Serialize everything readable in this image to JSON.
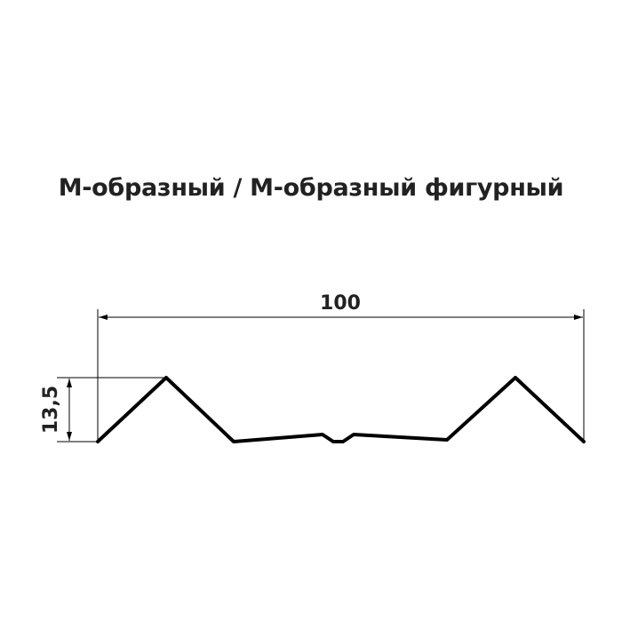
{
  "title": "М-образный / М-образный фигурный",
  "dimensions": {
    "width_label": "100",
    "height_label": "13,5"
  },
  "colors": {
    "line": "#000000",
    "text": "#222222"
  }
}
